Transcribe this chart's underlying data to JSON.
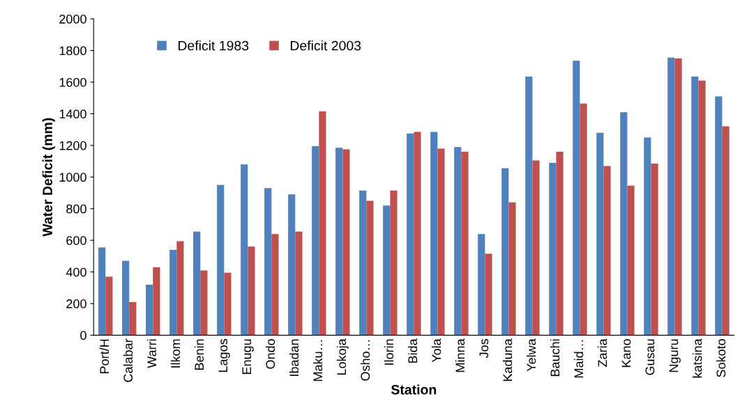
{
  "chart_data": {
    "type": "bar",
    "xlabel": "Station",
    "ylabel": "Water Deficit (mm)",
    "categories": [
      "Port/H",
      "Calabar",
      "Warri",
      "Ilkom",
      "Benin",
      "Lagos",
      "Enugu",
      "Ondo",
      "Ibadan",
      "Maku…",
      "Lokoja",
      "Osho…",
      "Ilorin",
      "Bida",
      "Yola",
      "Minna",
      "Jos",
      "Kaduna",
      "Yelwa",
      "Bauchi",
      "Maid…",
      "Zaria",
      "Kano",
      "Gusau",
      "Nguru",
      "katsina",
      "Sokoto"
    ],
    "series": [
      {
        "name": "Deficit 1983",
        "color": "#4f81bd",
        "values": [
          555,
          470,
          320,
          540,
          655,
          950,
          1080,
          930,
          890,
          1195,
          1185,
          915,
          820,
          1275,
          1285,
          1190,
          640,
          1055,
          1635,
          1090,
          1735,
          1280,
          1410,
          1250,
          1755,
          1635,
          1510
        ]
      },
      {
        "name": "Deficit 2003",
        "color": "#c0504d",
        "values": [
          370,
          210,
          430,
          595,
          410,
          395,
          560,
          640,
          655,
          1415,
          1175,
          850,
          915,
          1285,
          1180,
          1160,
          515,
          840,
          1105,
          1160,
          1465,
          1070,
          945,
          1085,
          1750,
          1610,
          1320
        ]
      }
    ],
    "ylim": [
      0,
      2000
    ],
    "yticks": [
      0,
      200,
      400,
      600,
      800,
      1000,
      1200,
      1400,
      1600,
      1800,
      2000
    ],
    "grid": false,
    "legend": "top left"
  }
}
